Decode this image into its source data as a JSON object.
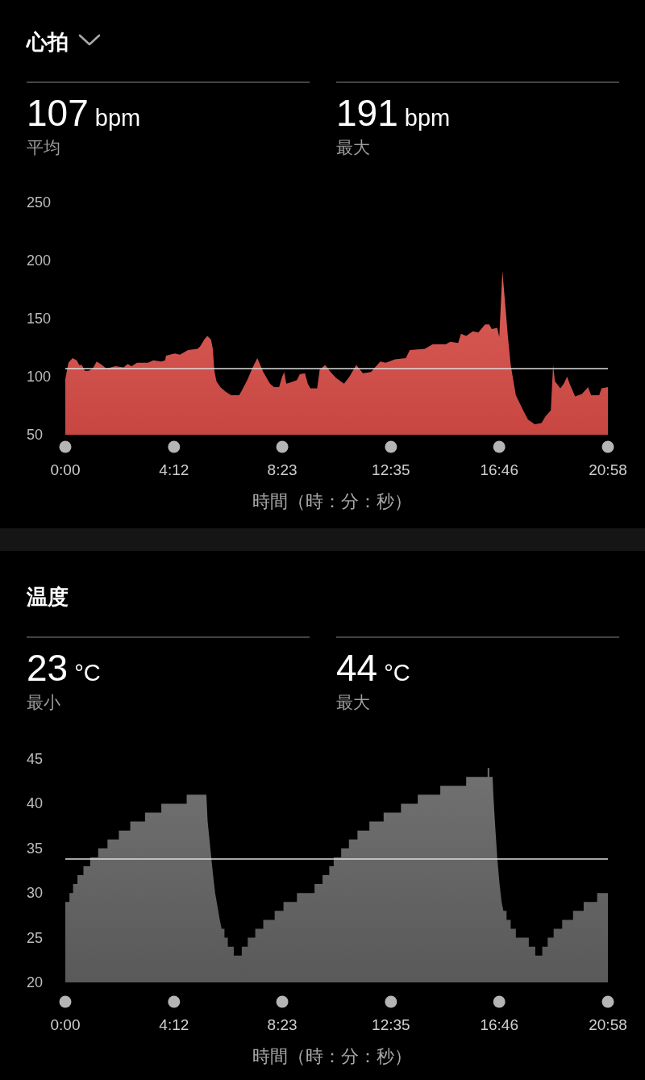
{
  "chart_data": [
    {
      "type": "area",
      "title": "心拍",
      "annotations": [
        "107 bpm",
        "平均",
        "191 bpm",
        "最大"
      ],
      "xlabel": "時間（時：分：秒）",
      "x": [
        0,
        0.12,
        0.28,
        0.44,
        0.54,
        0.64,
        0.75,
        0.9,
        1.06,
        1.21,
        1.42,
        1.58,
        1.94,
        2.25,
        2.41,
        2.56,
        2.77,
        3.19,
        3.4,
        3.71,
        3.86,
        3.89,
        4.23,
        4.43,
        4.74,
        5.11,
        5.21,
        5.37,
        5.49,
        5.63,
        5.7,
        5.76,
        5.84,
        5.99,
        6.2,
        6.41,
        6.72,
        6.82,
        7.03,
        7.24,
        7.42,
        7.65,
        7.91,
        8.07,
        8.26,
        8.38,
        8.46,
        8.54,
        8.69,
        8.95,
        9.06,
        9.26,
        9.37,
        9.47,
        9.73,
        9.83,
        10.04,
        10.25,
        10.46,
        10.77,
        10.98,
        11.24,
        11.5,
        11.81,
        12.17,
        12.38,
        12.74,
        13.16,
        13.31,
        13.89,
        14.2,
        14.71,
        14.87,
        15.18,
        15.29,
        15.49,
        15.75,
        15.96,
        16.22,
        16.38,
        16.48,
        16.69,
        16.77,
        16.89,
        16.98,
        17.1,
        17.21,
        17.41,
        17.67,
        17.88,
        18.14,
        18.4,
        18.56,
        18.76,
        18.85,
        18.92,
        19.13,
        19.26,
        19.39,
        19.49,
        19.7,
        19.96,
        20.2,
        20.32,
        20.63,
        20.72,
        20.967
      ],
      "values": [
        98,
        112,
        116,
        114,
        110,
        110,
        105,
        105,
        107,
        113,
        110,
        107,
        109,
        108,
        111,
        109,
        112,
        112,
        114,
        113,
        114,
        118,
        120,
        119,
        123,
        124,
        126,
        132,
        135,
        132,
        124,
        105,
        96,
        91,
        87,
        84,
        84,
        88,
        97,
        108,
        116,
        104,
        94,
        91,
        91,
        100,
        104,
        94,
        95,
        97,
        102,
        103,
        94,
        90,
        90,
        106,
        110,
        104,
        99,
        94,
        100,
        110,
        103,
        104,
        113,
        112,
        115,
        116,
        123,
        124,
        128,
        128,
        130,
        129,
        137,
        135,
        139,
        138,
        145,
        145,
        141,
        142,
        134,
        191,
        167,
        135,
        110,
        84,
        72,
        63,
        59,
        60,
        66,
        71,
        110,
        96,
        90,
        94,
        100,
        94,
        83,
        85,
        91,
        84,
        84,
        90,
        91
      ],
      "color": "#d84c47",
      "xlim": [
        0,
        20.967
      ],
      "xticks": [
        {
          "value": 0,
          "label": "0:00"
        },
        {
          "value": 4.2,
          "label": "4:12"
        },
        {
          "value": 8.383,
          "label": "8:23"
        },
        {
          "value": 12.583,
          "label": "12:35"
        },
        {
          "value": 16.767,
          "label": "16:46"
        },
        {
          "value": 20.967,
          "label": "20:58"
        }
      ],
      "ylim": [
        50,
        250
      ],
      "yticks": [
        50,
        100,
        150,
        200,
        250
      ],
      "ref_lines": [
        {
          "axis": "y",
          "value": 107,
          "color": "#dcdcdc"
        }
      ]
    },
    {
      "type": "area",
      "title": "温度",
      "annotations": [
        "23 °C",
        "最小",
        "44 °C",
        "最大"
      ],
      "xlabel": "時間（時：分：秒）",
      "x": [
        0,
        0.16,
        0.16,
        0.3,
        0.3,
        0.47,
        0.47,
        0.7,
        0.7,
        0.96,
        0.96,
        1.27,
        1.27,
        1.63,
        1.63,
        2.07,
        2.07,
        2.51,
        2.51,
        3.08,
        3.08,
        3.71,
        3.71,
        4.69,
        4.69,
        5.45,
        5.5,
        5.57,
        5.64,
        5.71,
        5.79,
        5.85,
        5.91,
        5.97,
        6.04,
        6.15,
        6.15,
        6.28,
        6.28,
        6.51,
        6.51,
        6.82,
        6.82,
        7.05,
        7.05,
        7.34,
        7.34,
        7.65,
        7.65,
        8.09,
        8.09,
        8.43,
        8.43,
        8.95,
        8.95,
        9.63,
        9.63,
        9.94,
        9.94,
        10.2,
        10.2,
        10.37,
        10.37,
        10.66,
        10.66,
        10.96,
        10.96,
        11.29,
        11.29,
        11.75,
        11.75,
        12.3,
        12.3,
        12.97,
        12.97,
        13.62,
        13.62,
        14.49,
        14.49,
        15.49,
        15.49,
        16.32,
        16.32,
        16.38,
        16.38,
        16.51,
        16.54,
        16.6,
        16.69,
        16.78,
        16.86,
        16.93,
        17.05,
        17.05,
        17.21,
        17.21,
        17.41,
        17.41,
        17.91,
        17.91,
        18.16,
        18.16,
        18.43,
        18.43,
        18.64,
        18.64,
        18.87,
        18.87,
        19.2,
        19.2,
        19.62,
        19.62,
        20.03,
        20.03,
        20.55,
        20.55,
        20.967
      ],
      "values": [
        29,
        29,
        30,
        30,
        31,
        31,
        32,
        32,
        33,
        33,
        34,
        34,
        35,
        35,
        36,
        36,
        37,
        37,
        38,
        38,
        39,
        39,
        40,
        40,
        41,
        41,
        38,
        36,
        34,
        32,
        30,
        29,
        28,
        27,
        26,
        26,
        25,
        25,
        24,
        24,
        23,
        23,
        24,
        24,
        25,
        25,
        26,
        26,
        27,
        27,
        28,
        28,
        29,
        29,
        30,
        30,
        31,
        31,
        32,
        32,
        33,
        33,
        34,
        34,
        35,
        35,
        36,
        36,
        37,
        37,
        38,
        38,
        39,
        39,
        40,
        40,
        41,
        41,
        42,
        42,
        43,
        43,
        44,
        44,
        43,
        43,
        41,
        38,
        34,
        31,
        29,
        28,
        28,
        27,
        27,
        26,
        26,
        25,
        25,
        24,
        24,
        23,
        23,
        24,
        24,
        25,
        25,
        26,
        26,
        27,
        27,
        28,
        28,
        29,
        29,
        30,
        30
      ],
      "color": "#616161",
      "xlim": [
        0,
        20.967
      ],
      "xticks": [
        {
          "value": 0,
          "label": "0:00"
        },
        {
          "value": 4.2,
          "label": "4:12"
        },
        {
          "value": 8.383,
          "label": "8:23"
        },
        {
          "value": 12.583,
          "label": "12:35"
        },
        {
          "value": 16.767,
          "label": "16:46"
        },
        {
          "value": 20.967,
          "label": "20:58"
        }
      ],
      "ylim": [
        20,
        45
      ],
      "yticks": [
        20,
        25,
        30,
        35,
        40,
        45
      ],
      "ref_lines": [
        {
          "axis": "y",
          "value": 33.8,
          "color": "#dcdcdc"
        }
      ]
    }
  ]
}
